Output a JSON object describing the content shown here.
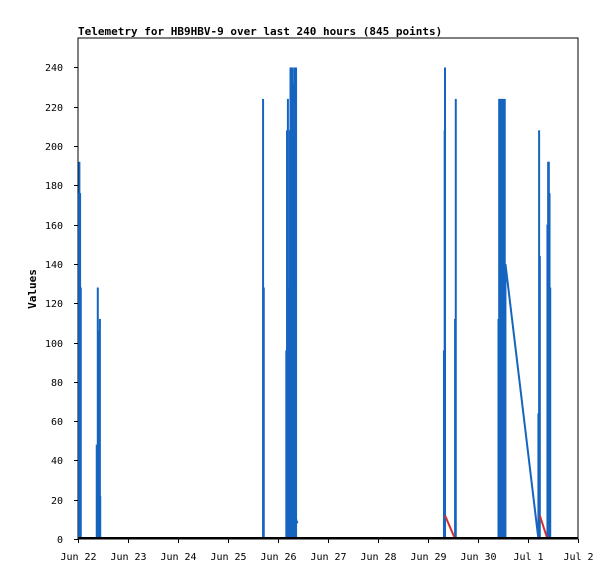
{
  "chart_data": {
    "type": "bar",
    "title": "Telemetry for HB9HBV-9 over last 240 hours (845 points)",
    "xlabel": "",
    "ylabel": "Values",
    "xlim": [
      "2025-06-22",
      "2025-07-02"
    ],
    "ylim": [
      0,
      255
    ],
    "x_tick_labels": [
      "Jun 22",
      "Jun 23",
      "Jun 24",
      "Jun 25",
      "Jun 26",
      "Jun 27",
      "Jun 28",
      "Jun 29",
      "Jun 30",
      "Jul 1",
      "Jul 2"
    ],
    "y_ticks": [
      0,
      20,
      40,
      60,
      80,
      100,
      120,
      140,
      160,
      180,
      200,
      220,
      240
    ],
    "grid": false,
    "legend": "none",
    "colors": {
      "primary": "#1565c0",
      "secondary": "#d32f2f",
      "baseline": "#000000"
    },
    "series": [
      {
        "points": [
          [
            "2025-06-22T00:30",
            176
          ],
          [
            "2025-06-22T00:40",
            192
          ],
          [
            "2025-06-22T00:50",
            176
          ],
          [
            "2025-06-22T01:00",
            176
          ],
          [
            "2025-06-22T01:10",
            128
          ],
          [
            "2025-06-22T01:20",
            128
          ],
          [
            "2025-06-22T09:00",
            48
          ],
          [
            "2025-06-22T09:30",
            128
          ],
          [
            "2025-06-22T09:50",
            106
          ],
          [
            "2025-06-22T10:10",
            64
          ],
          [
            "2025-06-22T10:30",
            112
          ],
          [
            "2025-06-22T10:40",
            22
          ],
          [
            "2025-06-25T16:50",
            224
          ],
          [
            "2025-06-25T17:10",
            128
          ],
          [
            "2025-06-26T04:00",
            96
          ],
          [
            "2025-06-26T04:20",
            208
          ],
          [
            "2025-06-26T04:45",
            224
          ],
          [
            "2025-06-26T05:00",
            120
          ],
          [
            "2025-06-26T05:20",
            128
          ],
          [
            "2025-06-26T05:40",
            208
          ],
          [
            "2025-06-26T06:00",
            240
          ],
          [
            "2025-06-26T06:20",
            232
          ],
          [
            "2025-06-26T06:40",
            240
          ],
          [
            "2025-06-26T07:00",
            240
          ],
          [
            "2025-06-26T07:20",
            232
          ],
          [
            "2025-06-26T07:40",
            224
          ],
          [
            "2025-06-26T08:00",
            240
          ],
          [
            "2025-06-26T08:20",
            144
          ],
          [
            "2025-06-26T08:40",
            240
          ],
          [
            "2025-06-29T07:40",
            96
          ],
          [
            "2025-06-29T08:00",
            208
          ],
          [
            "2025-06-29T08:10",
            240
          ],
          [
            "2025-06-29T13:00",
            112
          ],
          [
            "2025-06-29T13:20",
            224
          ],
          [
            "2025-06-30T09:50",
            112
          ],
          [
            "2025-06-30T10:10",
            224
          ],
          [
            "2025-06-30T10:30",
            80
          ],
          [
            "2025-06-30T10:50",
            224
          ],
          [
            "2025-06-30T11:10",
            224
          ],
          [
            "2025-06-30T11:30",
            112
          ],
          [
            "2025-06-30T11:50",
            224
          ],
          [
            "2025-06-30T12:10",
            224
          ],
          [
            "2025-06-30T12:30",
            168
          ],
          [
            "2025-06-30T12:50",
            224
          ],
          [
            "2025-06-30T13:10",
            140
          ],
          [
            "2025-07-01T05:00",
            64
          ],
          [
            "2025-07-01T05:20",
            208
          ],
          [
            "2025-07-01T05:40",
            144
          ],
          [
            "2025-07-01T09:20",
            160
          ],
          [
            "2025-07-01T09:40",
            192
          ],
          [
            "2025-07-01T10:00",
            192
          ],
          [
            "2025-07-01T10:20",
            176
          ],
          [
            "2025-07-01T10:40",
            128
          ]
        ],
        "trend_lines": [
          [
            [
              "2025-06-26T08:40",
              10
            ],
            [
              "2025-06-26T09:20",
              8
            ]
          ],
          [
            [
              "2025-06-30T13:10",
              140
            ],
            [
              "2025-07-01T05:00",
              0
            ]
          ]
        ]
      },
      {
        "trend_lines": [
          [
            [
              "2025-06-29T08:10",
              12
            ],
            [
              "2025-06-29T13:00",
              0
            ]
          ],
          [
            [
              "2025-07-01T05:40",
              12
            ],
            [
              "2025-07-01T09:20",
              0
            ]
          ]
        ]
      }
    ]
  }
}
